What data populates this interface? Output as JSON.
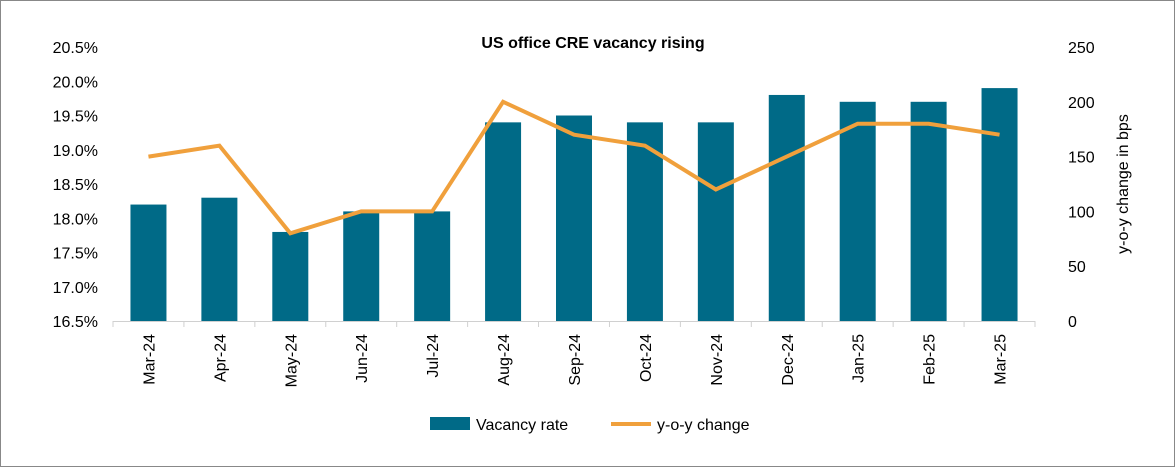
{
  "chart_data": {
    "type": "bar+line",
    "title": "US office CRE vacancy rising",
    "categories": [
      "Mar-24",
      "Apr-24",
      "May-24",
      "Jun-24",
      "Jul-24",
      "Aug-24",
      "Sep-24",
      "Oct-24",
      "Nov-24",
      "Dec-24",
      "Jan-25",
      "Feb-25",
      "Mar-25"
    ],
    "series": [
      {
        "name": "Vacancy rate",
        "type": "bar",
        "axis": "left",
        "color": "#006A87",
        "values": [
          18.2,
          18.3,
          17.8,
          18.1,
          18.1,
          19.4,
          19.5,
          19.4,
          19.4,
          19.8,
          19.7,
          19.7,
          19.9
        ]
      },
      {
        "name": "y-o-y change",
        "type": "line",
        "axis": "right",
        "color": "#F0A03C",
        "values": [
          150,
          160,
          80,
          100,
          100,
          200,
          170,
          160,
          120,
          150,
          180,
          180,
          170
        ]
      }
    ],
    "left_axis": {
      "label": "",
      "ylim": [
        16.5,
        20.5
      ],
      "ticks": [
        "20.5%",
        "20.0%",
        "19.5%",
        "19.0%",
        "18.5%",
        "18.0%",
        "17.5%",
        "17.0%",
        "16.5%"
      ]
    },
    "right_axis": {
      "label": "y-o-y change in bps",
      "ylim": [
        0,
        250
      ],
      "ticks": [
        "250",
        "200",
        "150",
        "100",
        "50",
        "0"
      ]
    },
    "grid": false,
    "legend": "bottom"
  }
}
